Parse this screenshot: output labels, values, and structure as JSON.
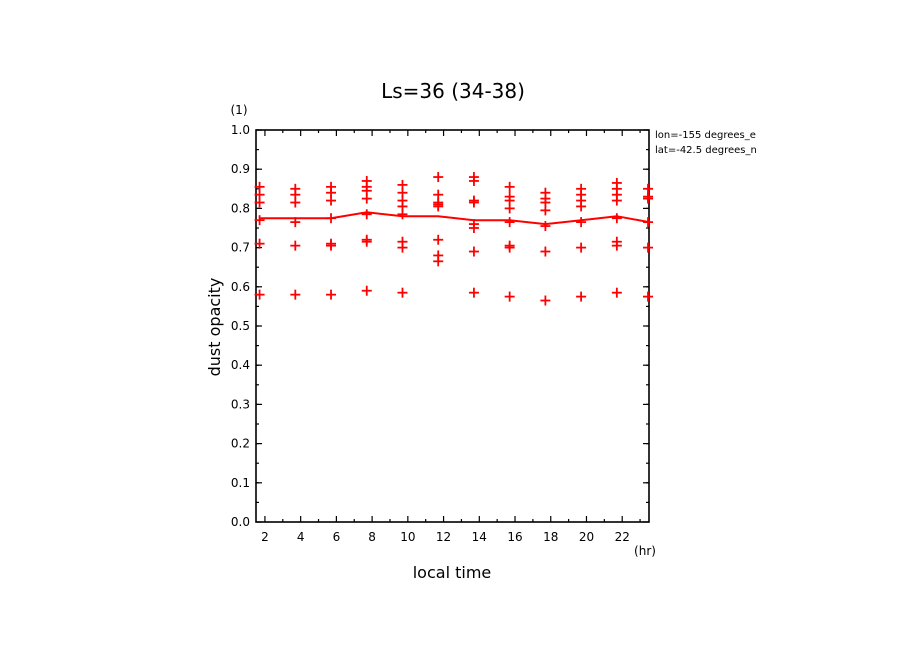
{
  "chart_data": {
    "type": "scatter",
    "title": "Ls=36 (34-38)",
    "xlabel": "local time",
    "ylabel": "dust opacity",
    "x_unit": "(hr)",
    "y_unit": "(1)",
    "xlim": [
      1.5,
      23.5
    ],
    "ylim": [
      0.0,
      1.0
    ],
    "x_ticks": [
      2,
      4,
      6,
      8,
      10,
      12,
      14,
      16,
      18,
      20,
      22
    ],
    "y_ticks": [
      0.0,
      0.1,
      0.2,
      0.3,
      0.4,
      0.5,
      0.6,
      0.7,
      0.8,
      0.9,
      1.0
    ],
    "annotations": [
      "lon=-155 degrees_e",
      "lat=-42.5 degrees_n"
    ],
    "grid": false,
    "legend": "none",
    "colors": {
      "data": "#ff0000",
      "axes": "#000000"
    },
    "series": [
      {
        "type": "scatter",
        "marker": "plus",
        "points": [
          [
            1.7,
            0.855
          ],
          [
            1.7,
            0.835
          ],
          [
            1.7,
            0.815
          ],
          [
            1.7,
            0.77
          ],
          [
            1.7,
            0.71
          ],
          [
            1.7,
            0.58
          ],
          [
            3.7,
            0.85
          ],
          [
            3.7,
            0.835
          ],
          [
            3.7,
            0.815
          ],
          [
            3.7,
            0.765
          ],
          [
            3.7,
            0.705
          ],
          [
            3.7,
            0.58
          ],
          [
            5.7,
            0.855
          ],
          [
            5.7,
            0.84
          ],
          [
            5.7,
            0.82
          ],
          [
            5.7,
            0.775
          ],
          [
            5.7,
            0.71
          ],
          [
            5.7,
            0.705
          ],
          [
            5.7,
            0.58
          ],
          [
            7.7,
            0.87
          ],
          [
            7.7,
            0.855
          ],
          [
            7.7,
            0.845
          ],
          [
            7.7,
            0.825
          ],
          [
            7.7,
            0.785
          ],
          [
            7.7,
            0.72
          ],
          [
            7.7,
            0.715
          ],
          [
            7.7,
            0.59
          ],
          [
            9.7,
            0.86
          ],
          [
            9.7,
            0.84
          ],
          [
            9.7,
            0.82
          ],
          [
            9.7,
            0.805
          ],
          [
            9.7,
            0.785
          ],
          [
            9.7,
            0.715
          ],
          [
            9.7,
            0.7
          ],
          [
            9.7,
            0.585
          ],
          [
            11.7,
            0.88
          ],
          [
            11.7,
            0.835
          ],
          [
            11.7,
            0.815
          ],
          [
            11.7,
            0.81
          ],
          [
            11.7,
            0.805
          ],
          [
            11.7,
            0.72
          ],
          [
            11.7,
            0.68
          ],
          [
            11.7,
            0.665
          ],
          [
            13.7,
            0.88
          ],
          [
            13.7,
            0.87
          ],
          [
            13.7,
            0.82
          ],
          [
            13.7,
            0.815
          ],
          [
            13.7,
            0.76
          ],
          [
            13.7,
            0.75
          ],
          [
            13.7,
            0.69
          ],
          [
            13.7,
            0.585
          ],
          [
            15.7,
            0.855
          ],
          [
            15.7,
            0.83
          ],
          [
            15.7,
            0.82
          ],
          [
            15.7,
            0.8
          ],
          [
            15.7,
            0.765
          ],
          [
            15.7,
            0.705
          ],
          [
            15.7,
            0.7
          ],
          [
            15.7,
            0.575
          ],
          [
            17.7,
            0.84
          ],
          [
            17.7,
            0.825
          ],
          [
            17.7,
            0.815
          ],
          [
            17.7,
            0.795
          ],
          [
            17.7,
            0.755
          ],
          [
            17.7,
            0.69
          ],
          [
            17.7,
            0.565
          ],
          [
            19.7,
            0.85
          ],
          [
            19.7,
            0.835
          ],
          [
            19.7,
            0.82
          ],
          [
            19.7,
            0.805
          ],
          [
            19.7,
            0.765
          ],
          [
            19.7,
            0.7
          ],
          [
            19.7,
            0.575
          ],
          [
            21.7,
            0.865
          ],
          [
            21.7,
            0.85
          ],
          [
            21.7,
            0.835
          ],
          [
            21.7,
            0.82
          ],
          [
            21.7,
            0.775
          ],
          [
            21.7,
            0.715
          ],
          [
            21.7,
            0.705
          ],
          [
            21.7,
            0.585
          ],
          [
            23.7,
            0.85
          ],
          [
            23.7,
            0.83
          ],
          [
            23.7,
            0.825
          ],
          [
            23.7,
            0.765
          ],
          [
            23.7,
            0.7
          ],
          [
            23.7,
            0.575
          ]
        ]
      },
      {
        "type": "line",
        "x": [
          1.7,
          3.7,
          5.7,
          7.7,
          9.7,
          11.7,
          13.7,
          15.7,
          17.7,
          19.7,
          21.7,
          23.7
        ],
        "y": [
          0.775,
          0.775,
          0.775,
          0.79,
          0.78,
          0.78,
          0.77,
          0.77,
          0.76,
          0.77,
          0.78,
          0.765
        ]
      }
    ]
  }
}
